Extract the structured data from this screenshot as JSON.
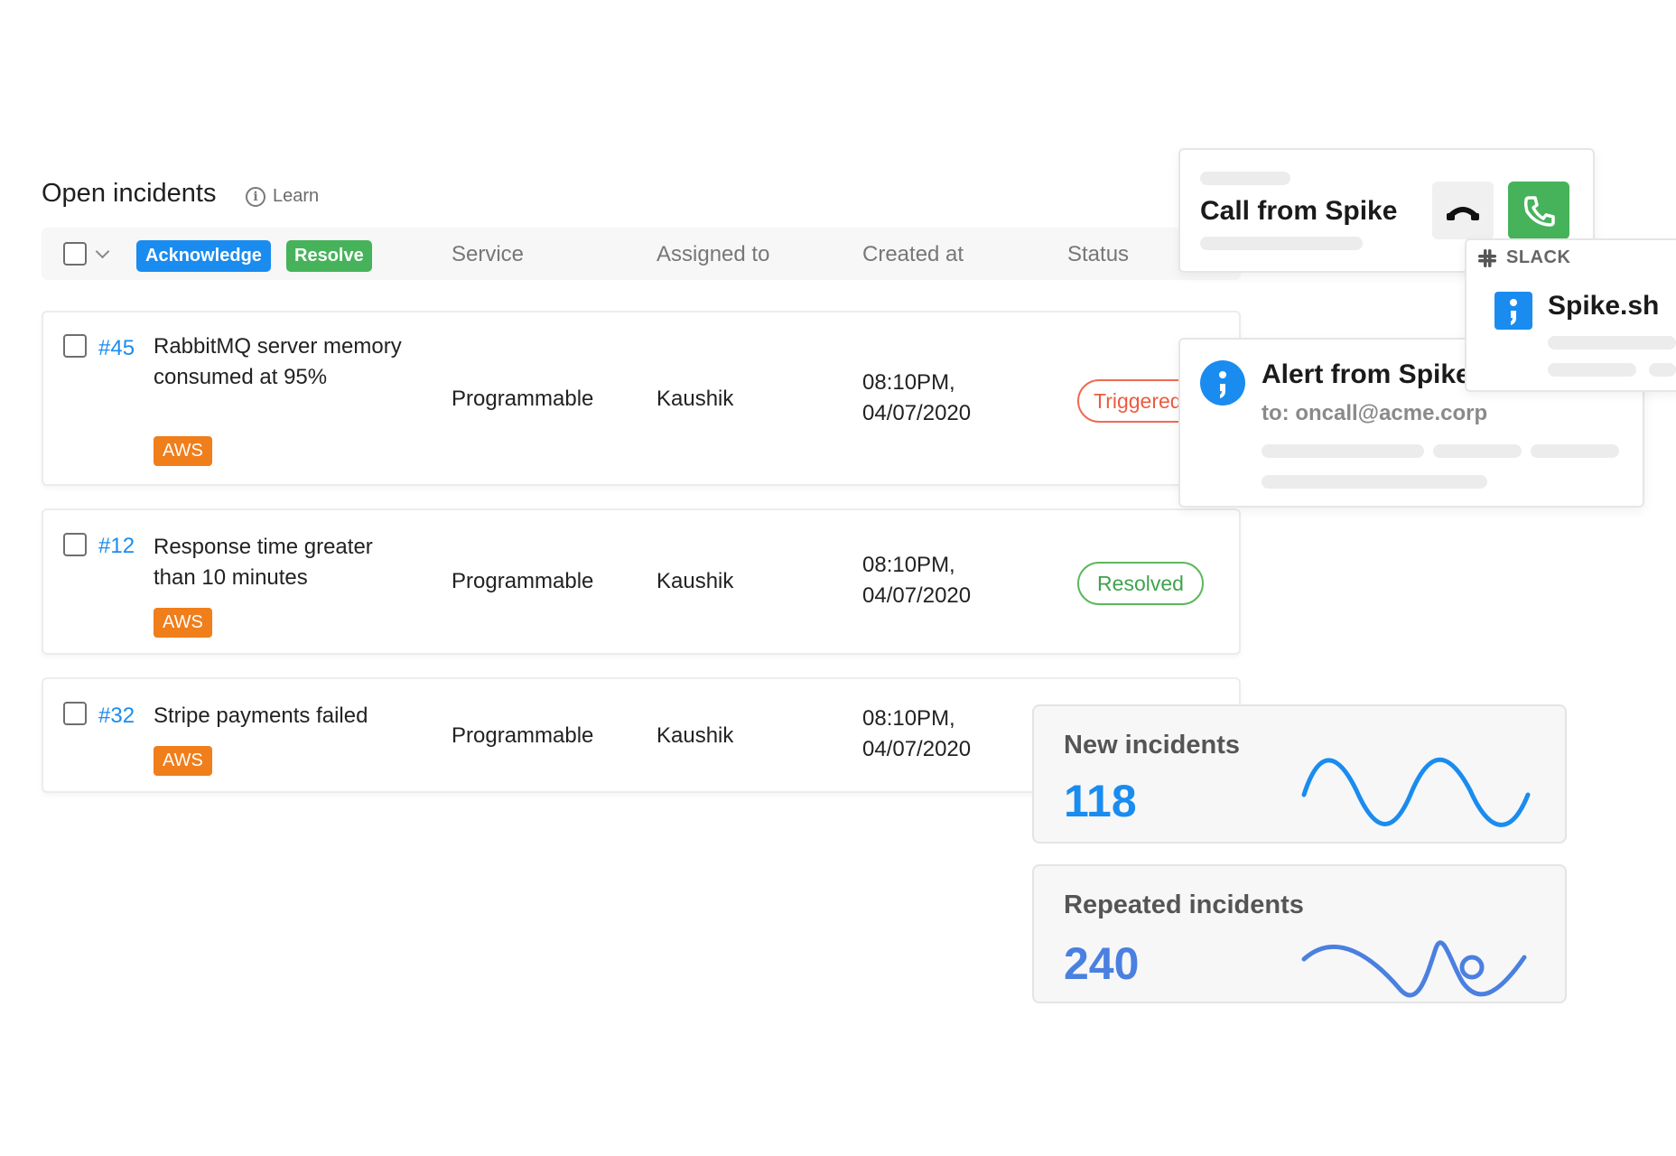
{
  "header": {
    "title": "Open incidents",
    "learn_label": "Learn"
  },
  "toolbar": {
    "acknowledge_label": "Acknowledge",
    "resolve_label": "Resolve",
    "columns": {
      "service": "Service",
      "assigned_to": "Assigned to",
      "created_at": "Created at",
      "status": "Status"
    }
  },
  "incidents": [
    {
      "id": "#45",
      "title": "RabbitMQ server memory consumed at 95%",
      "tag": "AWS",
      "service": "Programmable",
      "assignee": "Kaushik",
      "created_time": "08:10PM,",
      "created_date": "04/07/2020",
      "status": "Triggered"
    },
    {
      "id": "#12",
      "title": "Response time greater than 10 minutes",
      "tag": "AWS",
      "service": "Programmable",
      "assignee": "Kaushik",
      "created_time": "08:10PM,",
      "created_date": "04/07/2020",
      "status": "Resolved"
    },
    {
      "id": "#32",
      "title": "Stripe payments failed",
      "tag": "AWS",
      "service": "Programmable",
      "assignee": "Kaushik",
      "created_time": "08:10PM,",
      "created_date": "04/07/2020",
      "status": ""
    }
  ],
  "call_card": {
    "title": "Call from Spike"
  },
  "alert_card": {
    "title": "Alert from Spike",
    "to": "to: oncall@acme.corp"
  },
  "slack_card": {
    "label": "SLACK",
    "app_name": "Spike.sh"
  },
  "stats": {
    "new_incidents": {
      "label": "New incidents",
      "value": "118"
    },
    "repeated_incidents": {
      "label": "Repeated incidents",
      "value": "240"
    }
  },
  "colors": {
    "accent_blue": "#1a8cf0",
    "green": "#46b35a",
    "aws_orange": "#f07e1b",
    "triggered_red": "#ec5b40",
    "new_incidents_blue": "#1a8cf0",
    "repeated_incidents_blue": "#4a80e0"
  },
  "icons": [
    "info-icon",
    "chevron-down-icon",
    "hang-up-icon",
    "phone-icon",
    "slack-icon",
    "spike-logo-icon",
    "sparkline"
  ]
}
